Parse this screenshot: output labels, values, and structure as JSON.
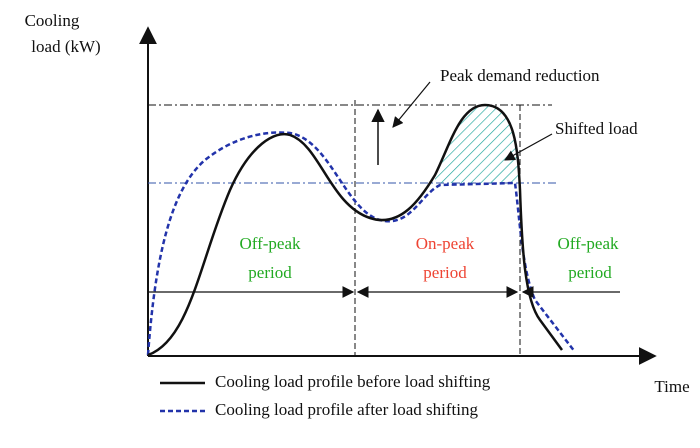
{
  "axes": {
    "y_label": [
      "Cooling",
      "load (kW)"
    ],
    "x_label": "Time"
  },
  "annotations": {
    "peak_reduction": "Peak demand reduction",
    "shifted_load": "Shifted load"
  },
  "periods": [
    {
      "name": "Off-peak",
      "sub": "period"
    },
    {
      "name": "On-peak",
      "sub": "period"
    },
    {
      "name": "Off-peak",
      "sub": "period"
    }
  ],
  "legend": [
    "Cooling load profile before load shifting",
    "Cooling load profile after load shifting"
  ]
}
